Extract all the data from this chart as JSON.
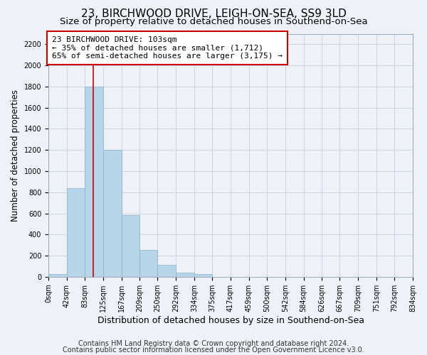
{
  "title": "23, BIRCHWOOD DRIVE, LEIGH-ON-SEA, SS9 3LD",
  "subtitle": "Size of property relative to detached houses in Southend-on-Sea",
  "xlabel": "Distribution of detached houses by size in Southend-on-Sea",
  "ylabel": "Number of detached properties",
  "bar_left_edges": [
    0,
    42,
    83,
    125,
    167,
    209,
    250,
    292,
    334,
    375,
    417,
    459,
    500,
    542,
    584,
    626,
    667,
    709,
    751,
    792
  ],
  "bar_widths": [
    42,
    41,
    42,
    42,
    42,
    41,
    42,
    42,
    41,
    42,
    42,
    41,
    42,
    42,
    42,
    41,
    42,
    42,
    41,
    42
  ],
  "bar_heights": [
    25,
    840,
    1800,
    1200,
    585,
    255,
    115,
    40,
    25,
    0,
    0,
    0,
    0,
    0,
    0,
    0,
    0,
    0,
    0,
    0
  ],
  "bar_color": "#b8d4e8",
  "bar_edgecolor": "#8ab0cc",
  "red_line_x": 103,
  "annotation_line1": "23 BIRCHWOOD DRIVE: 103sqm",
  "annotation_line2": "← 35% of detached houses are smaller (1,712)",
  "annotation_line3": "65% of semi-detached houses are larger (3,175) →",
  "annotation_box_color": "#ffffff",
  "annotation_box_edgecolor": "#cc0000",
  "xlim": [
    0,
    834
  ],
  "ylim": [
    0,
    2300
  ],
  "yticks": [
    0,
    200,
    400,
    600,
    800,
    1000,
    1200,
    1400,
    1600,
    1800,
    2000,
    2200
  ],
  "xtick_labels": [
    "0sqm",
    "42sqm",
    "83sqm",
    "125sqm",
    "167sqm",
    "209sqm",
    "250sqm",
    "292sqm",
    "334sqm",
    "375sqm",
    "417sqm",
    "459sqm",
    "500sqm",
    "542sqm",
    "584sqm",
    "626sqm",
    "667sqm",
    "709sqm",
    "751sqm",
    "792sqm",
    "834sqm"
  ],
  "xtick_positions": [
    0,
    42,
    83,
    125,
    167,
    209,
    250,
    292,
    334,
    375,
    417,
    459,
    500,
    542,
    584,
    626,
    667,
    709,
    751,
    792,
    834
  ],
  "grid_color": "#c8d4e4",
  "background_color": "#eef2f8",
  "plot_bg_color": "#eef2f8",
  "footer_line1": "Contains HM Land Registry data © Crown copyright and database right 2024.",
  "footer_line2": "Contains public sector information licensed under the Open Government Licence v3.0.",
  "title_fontsize": 11,
  "subtitle_fontsize": 9.5,
  "xlabel_fontsize": 9,
  "ylabel_fontsize": 8.5,
  "annotation_fontsize": 8,
  "footer_fontsize": 7,
  "tick_fontsize": 7
}
